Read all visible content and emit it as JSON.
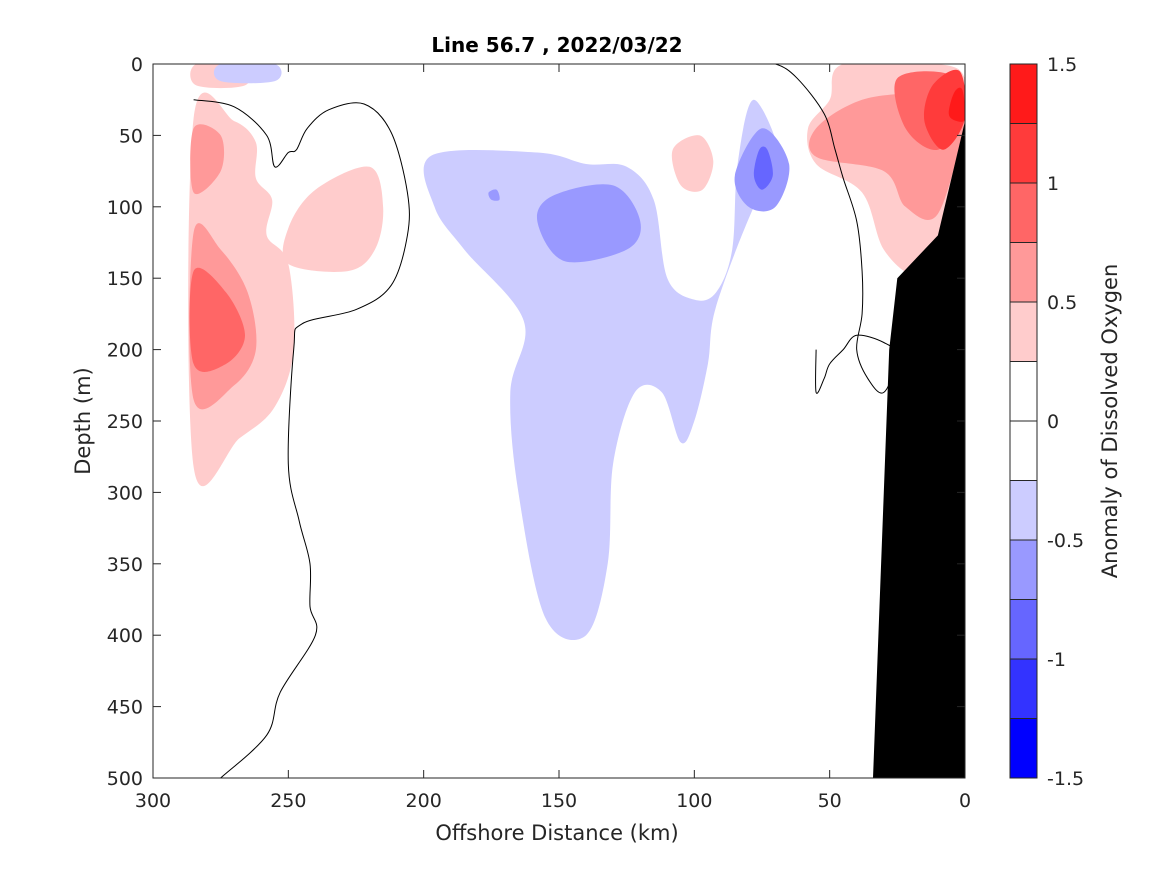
{
  "chart_data": {
    "type": "contour",
    "title": "Line 56.7 , 2022/03/22",
    "xlabel": "Offshore Distance (km)",
    "ylabel": "Depth (m)",
    "colorbar_label": "Anomaly of Dissolved Oxygen",
    "x_reversed": true,
    "xlim": [
      0,
      300
    ],
    "ylim": [
      0,
      500
    ],
    "y_reversed": true,
    "x_ticks": [
      300,
      250,
      200,
      150,
      100,
      50,
      0
    ],
    "y_ticks": [
      0,
      50,
      100,
      150,
      200,
      250,
      300,
      350,
      400,
      450,
      500
    ],
    "x_tick_labels": [
      "300",
      "250",
      "200",
      "150",
      "100",
      "50",
      "0"
    ],
    "y_tick_labels": [
      "0",
      "50",
      "100",
      "150",
      "200",
      "250",
      "300",
      "350",
      "400",
      "450",
      "500"
    ],
    "colorbar": {
      "range": [
        -1.5,
        1.5
      ],
      "tick_labels": [
        "1.5",
        "1",
        "0.5",
        "0",
        "-0.5",
        "-1",
        "-1.5"
      ],
      "tick_values": [
        1.5,
        1,
        0.5,
        0,
        -0.5,
        -1,
        -1.5
      ],
      "levels": [
        {
          "min": 1.25,
          "max": 1.5,
          "color": "#ff1a1a"
        },
        {
          "min": 1.0,
          "max": 1.25,
          "color": "#ff3b3b"
        },
        {
          "min": 0.75,
          "max": 1.0,
          "color": "#ff6666"
        },
        {
          "min": 0.5,
          "max": 0.75,
          "color": "#ff9999"
        },
        {
          "min": 0.25,
          "max": 0.5,
          "color": "#ffcccc"
        },
        {
          "min": 0.0,
          "max": 0.25,
          "color": "#ffffff"
        },
        {
          "min": -0.25,
          "max": 0.0,
          "color": "#ffffff"
        },
        {
          "min": -0.5,
          "max": -0.25,
          "color": "#ccccff"
        },
        {
          "min": -0.75,
          "max": -0.5,
          "color": "#9999ff"
        },
        {
          "min": -1.0,
          "max": -0.75,
          "color": "#6666ff"
        },
        {
          "min": -1.25,
          "max": -1.0,
          "color": "#3333ff"
        },
        {
          "min": -1.5,
          "max": -1.25,
          "color": "#0000ff"
        }
      ]
    },
    "bathymetry_color": "#000000",
    "bathymetry": [
      [
        0,
        40
      ],
      [
        10,
        120
      ],
      [
        25,
        150
      ],
      [
        28,
        200
      ],
      [
        30,
        300
      ],
      [
        33,
        450
      ],
      [
        34,
        500
      ],
      [
        0,
        500
      ]
    ],
    "anomaly_regions": [
      {
        "value": 0.35,
        "points": [
          [
            285,
            38
          ],
          [
            270,
            40
          ],
          [
            262,
            55
          ],
          [
            262,
            80
          ],
          [
            256,
            95
          ],
          [
            258,
            120
          ],
          [
            250,
            140
          ],
          [
            248,
            200
          ],
          [
            255,
            240
          ],
          [
            268,
            262
          ],
          [
            285,
            282
          ]
        ]
      },
      {
        "value": 0.6,
        "points": [
          [
            285,
            45
          ],
          [
            275,
            50
          ],
          [
            275,
            75
          ],
          [
            285,
            90
          ]
        ]
      },
      {
        "value": 0.6,
        "points": [
          [
            285,
            118
          ],
          [
            275,
            130
          ],
          [
            265,
            160
          ],
          [
            262,
            200
          ],
          [
            270,
            225
          ],
          [
            285,
            235
          ]
        ]
      },
      {
        "value": 0.85,
        "points": [
          [
            285,
            145
          ],
          [
            273,
            160
          ],
          [
            266,
            190
          ],
          [
            273,
            210
          ],
          [
            285,
            210
          ]
        ]
      },
      {
        "value": 0.35,
        "points": [
          [
            250,
            115
          ],
          [
            240,
            88
          ],
          [
            220,
            72
          ],
          [
            215,
            100
          ],
          [
            218,
            130
          ],
          [
            228,
            145
          ],
          [
            250,
            140
          ]
        ]
      },
      {
        "value": -0.35,
        "points": [
          [
            197,
            64
          ],
          [
            158,
            62
          ],
          [
            140,
            70
          ],
          [
            125,
            72
          ],
          [
            115,
            95
          ],
          [
            110,
            150
          ],
          [
            100,
            165
          ],
          [
            92,
            160
          ],
          [
            86,
            130
          ],
          [
            84,
            70
          ],
          [
            78,
            25
          ],
          [
            68,
            70
          ],
          [
            78,
            100
          ],
          [
            92,
            170
          ],
          [
            95,
            210
          ],
          [
            100,
            250
          ],
          [
            105,
            265
          ],
          [
            112,
            230
          ],
          [
            122,
            230
          ],
          [
            130,
            280
          ],
          [
            132,
            350
          ],
          [
            140,
            400
          ],
          [
            155,
            388
          ],
          [
            165,
            300
          ],
          [
            168,
            230
          ],
          [
            163,
            180
          ],
          [
            185,
            130
          ],
          [
            196,
            100
          ]
        ]
      },
      {
        "value": -0.6,
        "points": [
          [
            158,
            110
          ],
          [
            152,
            92
          ],
          [
            130,
            85
          ],
          [
            120,
            110
          ],
          [
            125,
            130
          ],
          [
            148,
            138
          ]
        ]
      },
      {
        "value": -0.6,
        "points": [
          [
            85,
            78
          ],
          [
            75,
            45
          ],
          [
            65,
            70
          ],
          [
            70,
            100
          ],
          [
            80,
            100
          ]
        ]
      },
      {
        "value": -0.85,
        "points": [
          [
            76,
            60
          ],
          [
            73,
            60
          ],
          [
            71,
            78
          ],
          [
            75,
            88
          ],
          [
            78,
            78
          ]
        ]
      },
      {
        "value": -0.6,
        "points": [
          [
            176,
            90
          ],
          [
            173,
            88
          ],
          [
            172,
            95
          ],
          [
            175,
            95
          ]
        ]
      },
      {
        "value": 0.35,
        "points": [
          [
            108,
            60
          ],
          [
            98,
            50
          ],
          [
            93,
            68
          ],
          [
            97,
            88
          ],
          [
            105,
            85
          ]
        ]
      },
      {
        "value": 0.35,
        "points": [
          [
            284,
            0
          ],
          [
            266,
            0
          ],
          [
            266,
            15
          ],
          [
            284,
            15
          ]
        ]
      },
      {
        "value": -0.35,
        "points": [
          [
            275,
            0
          ],
          [
            255,
            0
          ],
          [
            255,
            12
          ],
          [
            275,
            12
          ]
        ]
      },
      {
        "value": 0.35,
        "points": [
          [
            45,
            0
          ],
          [
            10,
            0
          ],
          [
            0,
            10
          ],
          [
            0,
            40
          ],
          [
            10,
            125
          ],
          [
            18,
            148
          ],
          [
            30,
            130
          ],
          [
            38,
            90
          ],
          [
            55,
            70
          ],
          [
            58,
            45
          ],
          [
            50,
            25
          ]
        ]
      },
      {
        "value": 0.6,
        "points": [
          [
            38,
            25
          ],
          [
            15,
            20
          ],
          [
            0,
            20
          ],
          [
            0,
            40
          ],
          [
            10,
            105
          ],
          [
            22,
            100
          ],
          [
            30,
            75
          ],
          [
            55,
            65
          ],
          [
            55,
            45
          ]
        ]
      },
      {
        "value": 0.85,
        "points": [
          [
            25,
            10
          ],
          [
            5,
            8
          ],
          [
            0,
            35
          ],
          [
            10,
            60
          ],
          [
            22,
            45
          ]
        ]
      },
      {
        "value": 1.1,
        "points": [
          [
            12,
            15
          ],
          [
            2,
            5
          ],
          [
            0,
            38
          ],
          [
            8,
            60
          ],
          [
            15,
            40
          ]
        ]
      },
      {
        "value": 1.35,
        "points": [
          [
            4,
            20
          ],
          [
            1,
            18
          ],
          [
            0,
            38
          ],
          [
            3,
            40
          ],
          [
            6,
            35
          ]
        ]
      }
    ],
    "zero_contours": [
      [
        [
          285,
          25
        ],
        [
          270,
          30
        ],
        [
          258,
          50
        ],
        [
          255,
          72
        ],
        [
          250,
          62
        ],
        [
          247,
          60
        ],
        [
          243,
          45
        ],
        [
          235,
          32
        ],
        [
          222,
          28
        ],
        [
          212,
          48
        ],
        [
          206,
          90
        ],
        [
          206,
          120
        ],
        [
          212,
          155
        ],
        [
          225,
          172
        ],
        [
          245,
          182
        ],
        [
          248,
          200
        ],
        [
          250,
          280
        ],
        [
          246,
          320
        ],
        [
          242,
          350
        ],
        [
          242,
          380
        ],
        [
          240,
          400
        ],
        [
          253,
          440
        ],
        [
          258,
          470
        ],
        [
          275,
          500
        ]
      ],
      [
        [
          80,
          0
        ],
        [
          70,
          0
        ],
        [
          62,
          10
        ],
        [
          52,
          35
        ],
        [
          48,
          60
        ],
        [
          45,
          80
        ],
        [
          40,
          110
        ],
        [
          38,
          145
        ],
        [
          38,
          175
        ],
        [
          40,
          200
        ],
        [
          36,
          220
        ],
        [
          30,
          230
        ],
        [
          25,
          205
        ],
        [
          30,
          195
        ],
        [
          40,
          190
        ],
        [
          45,
          200
        ],
        [
          50,
          210
        ],
        [
          52,
          220
        ],
        [
          55,
          230
        ],
        [
          55,
          200
        ]
      ],
      [
        [
          150,
          0
        ],
        [
          145,
          0
        ]
      ],
      [
        [
          260,
          0
        ],
        [
          250,
          0
        ]
      ]
    ]
  }
}
